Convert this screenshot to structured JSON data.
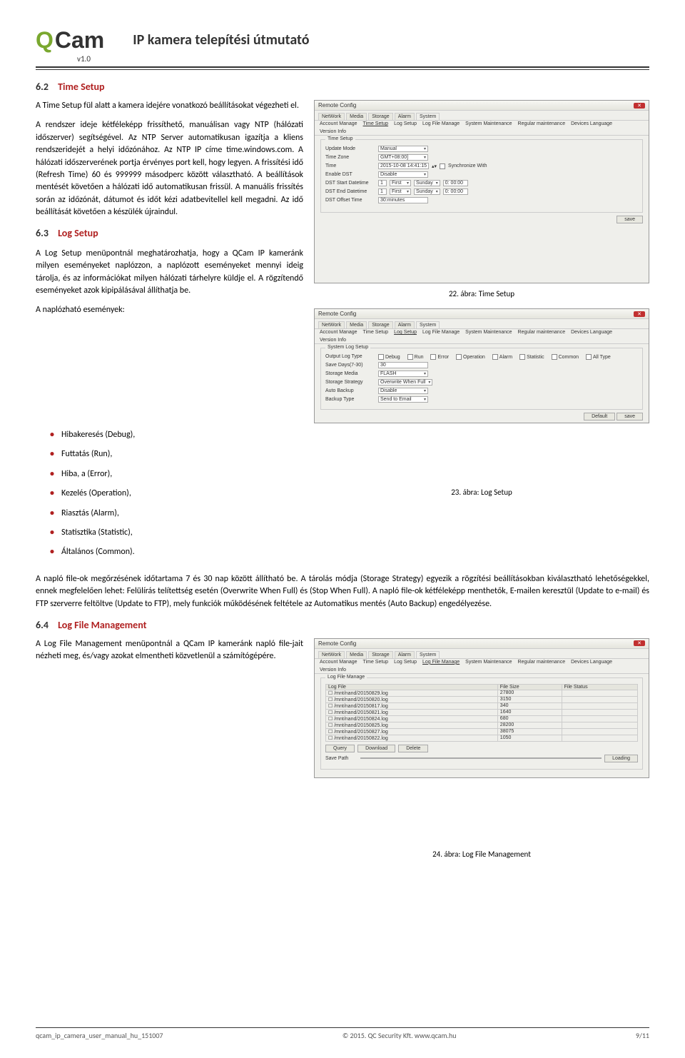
{
  "header": {
    "logo_q": "Q",
    "logo_cam": "Cam",
    "doc_title": "IP kamera telepítési útmutató",
    "version": "v1.0"
  },
  "sections": {
    "s62_num": "6.2",
    "s62_title": "Time Setup",
    "s62_para": "A Time Setup fül alatt a kamera idejére vonatkozó beállításokat végezheti el.",
    "s62_para2": "A rendszer ideje kétféleképp frissíthető, manuálisan vagy NTP (hálózati időszerver) segítségével. Az NTP Server automatikusan igazítja a kliens rendszeridejét a helyi időzónához. Az NTP IP címe time.windows.com. A hálózati időszerverének portja érvényes port kell, hogy legyen. A frissítési idő (Refresh Time) 60 és 999999 másodperc között választható. A beállítások mentését követően a hálózati idő automatikusan frissül. A manuális frissítés során az időzónát, dátumot és időt kézi adatbevitellel kell megadni. Az idő beállítását követően a készülék újraindul.",
    "s63_num": "6.3",
    "s63_title": "Log Setup",
    "s63_para": "A Log Setup menüpontnál meghatározhatja, hogy a QCam IP kameránk milyen eseményeket naplózzon, a naplózott eseményeket mennyi ideig tárolja, és az információkat milyen hálózati tárhelyre küldje el. A rögzítendő eseményeket azok kipipálásával állíthatja be.",
    "s63_events_label": "A naplózható események:",
    "events": {
      "e0": "Hibakeresés (Debug),",
      "e1": "Futtatás (Run),",
      "e2": "Hiba, a (Error),",
      "e3": "Kezelés (Operation),",
      "e4": "Riasztás (Alarm),",
      "e5": "Statisztika (Statistic),",
      "e6": "Általános (Common)."
    },
    "s63_para2": "A napló file-ok megőrzésének időtartama 7 és 30 nap között állítható be. A tárolás módja (Storage Strategy) egyezik a rögzítési beállításokban kiválasztható lehetőségekkel, ennek megfelelően lehet: Felülírás telítettség esetén (Overwrite When Full) és (Stop When Full). A napló file-ok kétféleképp menthetők, E-mailen keresztül (Update to e-mail) és FTP szerverre feltöltve (Update to FTP), mely funkciók működésének feltétele az Automatikus mentés (Auto Backup) engedélyezése.",
    "s64_num": "6.4",
    "s64_title": "Log File Management",
    "s64_para": "A Log File Management menüpontnál a QCam IP kameránk napló file-jait nézheti meg, és/vagy azokat elmentheti közvetlenül a számítógépére."
  },
  "captions": {
    "c22": "22. ábra: Time Setup",
    "c23": "23. ábra: Log Setup",
    "c24": "24. ábra: Log File Management"
  },
  "screenshots": {
    "window_title": "Remote Config",
    "tabs": {
      "t0": "NetWork",
      "t1": "Media",
      "t2": "Storage",
      "t3": "Alarm",
      "t4": "System"
    },
    "subtabs_sys": {
      "s0": "Account Manage",
      "s1": "Time Setup",
      "s2": "Log Setup",
      "s3": "Log File Manage",
      "s4": "System Maintenance",
      "s5": "Regular maintenance",
      "s6": "Devices Language",
      "s7": "Version Info"
    },
    "time_setup": {
      "group": "Time Setup",
      "subgroup": "Time Setup",
      "update_mode_lbl": "Update Mode",
      "update_mode_val": "Manual",
      "timezone_lbl": "Time Zone",
      "timezone_val": "GMT+08:00]",
      "time_lbl": "Time",
      "time_val": "2015-10-08 14:41:15",
      "sync_lbl": "Synchronize With",
      "dst_lbl": "Enable DST",
      "dst_val": "Disable",
      "dst_start_lbl": "DST Start Datetime",
      "dst_end_lbl": "DST End Datetime",
      "first": "First",
      "sunday": "Sunday",
      "timezero": "0: 00:00",
      "offset_lbl": "DST Offset Time",
      "offset_val": "30:minutes",
      "save": "save"
    },
    "log_setup": {
      "group": "System Log Setup",
      "output_lbl": "Output Log Type",
      "cb": {
        "c0": "Debug",
        "c1": "Run",
        "c2": "Error",
        "c3": "Operation",
        "c4": "Alarm",
        "c5": "Statistic",
        "c6": "Common",
        "c7": "All Type"
      },
      "save_days_lbl": "Save Days(7-30)",
      "save_days_val": "30",
      "storage_media_lbl": "Storage Media",
      "storage_media_val": "FLASH",
      "storage_strategy_lbl": "Storage Strategy",
      "storage_strategy_val": "Overwrite When Full",
      "auto_backup_lbl": "Auto Backup",
      "auto_backup_val": "Disable",
      "backup_type_lbl": "Backup Type",
      "backup_type_val": "Send to Email",
      "default_btn": "Default",
      "save_btn": "save"
    },
    "log_file": {
      "group": "Log File Manage",
      "col0": "Log File",
      "col1": "File Size",
      "col2": "File Status",
      "rows": [
        {
          "f": "/mnt/nand/20150829.log",
          "s": "27800"
        },
        {
          "f": "/mnt/nand/20150820.log",
          "s": "3150"
        },
        {
          "f": "/mnt/nand/20150817.log",
          "s": "340"
        },
        {
          "f": "/mnt/nand/20150821.log",
          "s": "1640"
        },
        {
          "f": "/mnt/nand/20150824.log",
          "s": "680"
        },
        {
          "f": "/mnt/nand/20150825.log",
          "s": "28200"
        },
        {
          "f": "/mnt/nand/20150827.log",
          "s": "38075"
        },
        {
          "f": "/mnt/nand/20150822.log",
          "s": "1050"
        }
      ],
      "query_btn": "Query",
      "download_btn": "Download",
      "delete_btn": "Delete",
      "save_path_lbl": "Save Path",
      "loading": "Loading"
    }
  },
  "footer": {
    "left": "qcam_ip_camera_user_manual_hu_151007",
    "mid": "© 2015. QC Security Kft.  www.qcam.hu",
    "right": "9/11"
  }
}
